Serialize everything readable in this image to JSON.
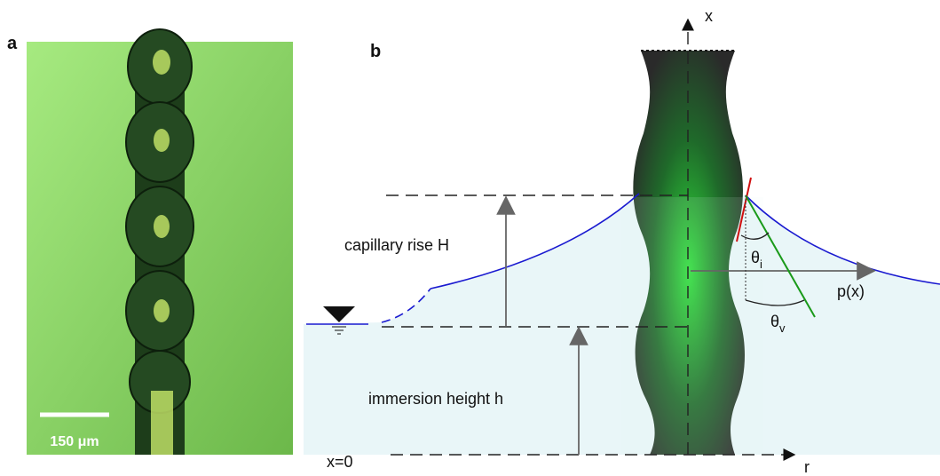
{
  "panel_a": {
    "label": "a",
    "scale_bar": "150 μm"
  },
  "panel_b": {
    "label": "b",
    "axis_x": "x",
    "axis_r": "r",
    "capillary_rise": "capillary rise H",
    "immersion_height": "immersion height h",
    "origin": "x=0",
    "pressure": "p(x)",
    "theta_i": {
      "symbol": "θ",
      "subscript": "i"
    },
    "theta_v": {
      "symbol": "θ",
      "subscript": "v"
    }
  }
}
